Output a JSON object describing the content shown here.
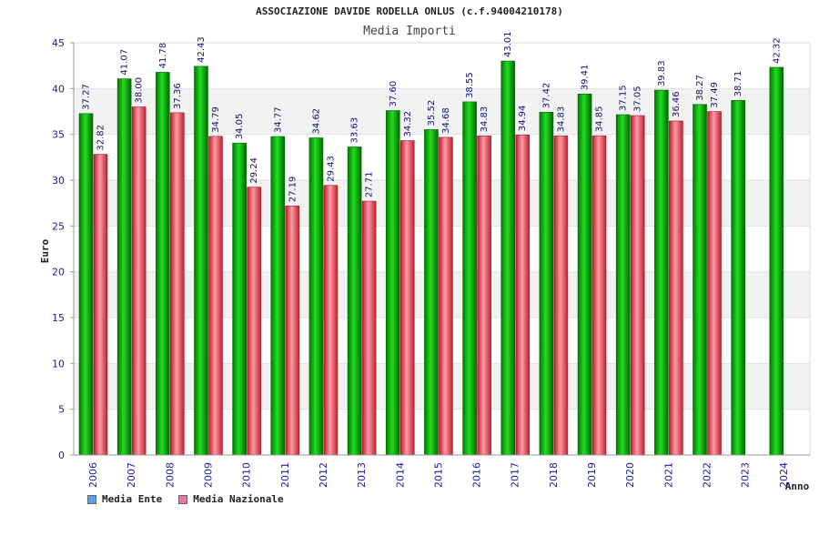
{
  "chart_data": {
    "type": "bar",
    "title": "ASSOCIAZIONE DAVIDE RODELLA ONLUS (c.f.94004210178)",
    "subtitle": "Media Importi",
    "xlabel": "Anno",
    "ylabel": "Euro",
    "ylim": [
      0,
      45
    ],
    "yticks": [
      0,
      5,
      10,
      15,
      20,
      25,
      30,
      35,
      40,
      45
    ],
    "categories": [
      "2006",
      "2007",
      "2008",
      "2009",
      "2010",
      "2011",
      "2012",
      "2013",
      "2014",
      "2015",
      "2016",
      "2017",
      "2018",
      "2019",
      "2020",
      "2021",
      "2022",
      "2023",
      "2024"
    ],
    "series": [
      {
        "name": "Media Ente",
        "color": "#00b000",
        "legend_color": "#5aa0e6",
        "values": [
          37.27,
          41.07,
          41.78,
          42.43,
          34.05,
          34.77,
          34.62,
          33.63,
          37.6,
          35.52,
          38.55,
          43.01,
          37.42,
          39.41,
          37.15,
          39.83,
          38.27,
          38.71,
          42.32
        ],
        "labels": [
          "37.27",
          "41.07",
          "41.78",
          "42.43",
          "34.05",
          "34.77",
          "34.62",
          "33.63",
          "37.60",
          "35.52",
          "38.55",
          "43.01",
          "37.42",
          "39.41",
          "37.15",
          "39.83",
          "38.27",
          "38.71",
          "42.32"
        ]
      },
      {
        "name": "Media Nazionale",
        "color": "#e8384a",
        "legend_color": "#e67aa0",
        "values": [
          32.82,
          38.0,
          37.36,
          34.79,
          29.24,
          27.19,
          29.43,
          27.71,
          34.32,
          34.68,
          34.83,
          34.94,
          34.83,
          34.85,
          37.05,
          36.46,
          37.49,
          null,
          null
        ],
        "labels": [
          "32.82",
          "38.00",
          "37.36",
          "34.79",
          "29.24",
          "27.19",
          "29.43",
          "27.71",
          "34.32",
          "34.68",
          "34.83",
          "34.94",
          "34.83",
          "34.85",
          "37.05",
          "36.46",
          "37.49",
          null,
          null
        ]
      }
    ],
    "grid": true,
    "legend_position": "bottom-left"
  }
}
